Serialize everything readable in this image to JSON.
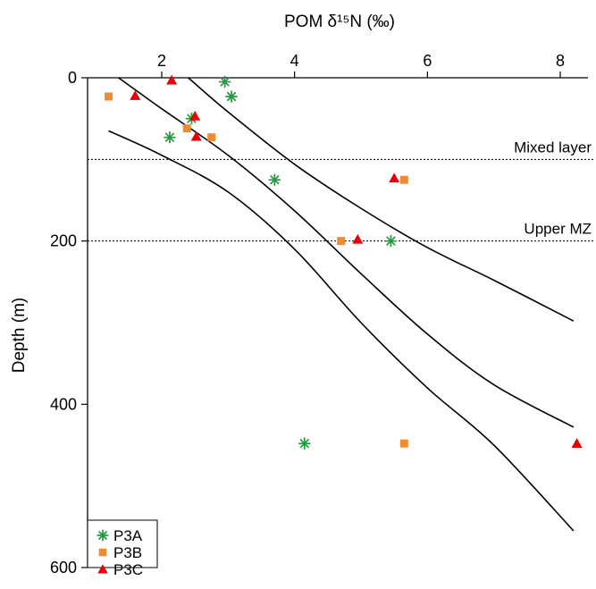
{
  "chart_data": {
    "type": "scatter",
    "title": "",
    "xlabel": "POM δ¹⁵N (‰)",
    "ylabel": "Depth (m)",
    "xlim": [
      0.5,
      8.4
    ],
    "ylim": [
      0,
      600
    ],
    "y_inverted": true,
    "x_axis_position": "top",
    "xticks": [
      2,
      4,
      6,
      8
    ],
    "yticks": [
      0,
      200,
      400,
      600
    ],
    "grid": false,
    "legend_position": "bottom-left",
    "reference_lines": [
      {
        "y": 100,
        "label": "Mixed layer"
      },
      {
        "y": 200,
        "label": "Upper MZ"
      }
    ],
    "series": [
      {
        "name": "P3A",
        "marker": "asterisk",
        "color": "#1e9e3a",
        "points": [
          [
            2.95,
            5
          ],
          [
            3.05,
            23
          ],
          [
            2.45,
            50
          ],
          [
            2.12,
            73
          ],
          [
            3.7,
            125
          ],
          [
            5.45,
            200
          ],
          [
            4.15,
            448
          ]
        ]
      },
      {
        "name": "P3B",
        "marker": "square",
        "color": "#f28a30",
        "points": [
          [
            1.2,
            23
          ],
          [
            2.38,
            62
          ],
          [
            2.75,
            73
          ],
          [
            5.65,
            125
          ],
          [
            4.7,
            200
          ],
          [
            5.65,
            448
          ]
        ]
      },
      {
        "name": "P3C",
        "marker": "triangle",
        "color": "#e8000b",
        "points": [
          [
            2.15,
            3
          ],
          [
            1.6,
            22
          ],
          [
            2.5,
            47
          ],
          [
            2.52,
            72
          ],
          [
            5.5,
            123
          ],
          [
            4.95,
            198
          ],
          [
            8.25,
            448
          ]
        ]
      }
    ],
    "fit_lines": [
      {
        "role": "regression",
        "points": [
          [
            1.35,
            0
          ],
          [
            2,
            38
          ],
          [
            3,
            95
          ],
          [
            4,
            163
          ],
          [
            5,
            240
          ],
          [
            6,
            314
          ],
          [
            7,
            376
          ],
          [
            8.2,
            428
          ]
        ]
      },
      {
        "role": "upper_bound",
        "points": [
          [
            2.4,
            0
          ],
          [
            3,
            42
          ],
          [
            4,
            106
          ],
          [
            5,
            160
          ],
          [
            6,
            208
          ],
          [
            7,
            248
          ],
          [
            8.2,
            298
          ]
        ]
      },
      {
        "role": "lower_bound",
        "points": [
          [
            1.2,
            65
          ],
          [
            2,
            95
          ],
          [
            3,
            140
          ],
          [
            4,
            210
          ],
          [
            5,
            300
          ],
          [
            6,
            380
          ],
          [
            7,
            450
          ],
          [
            8.2,
            555
          ]
        ]
      }
    ]
  }
}
